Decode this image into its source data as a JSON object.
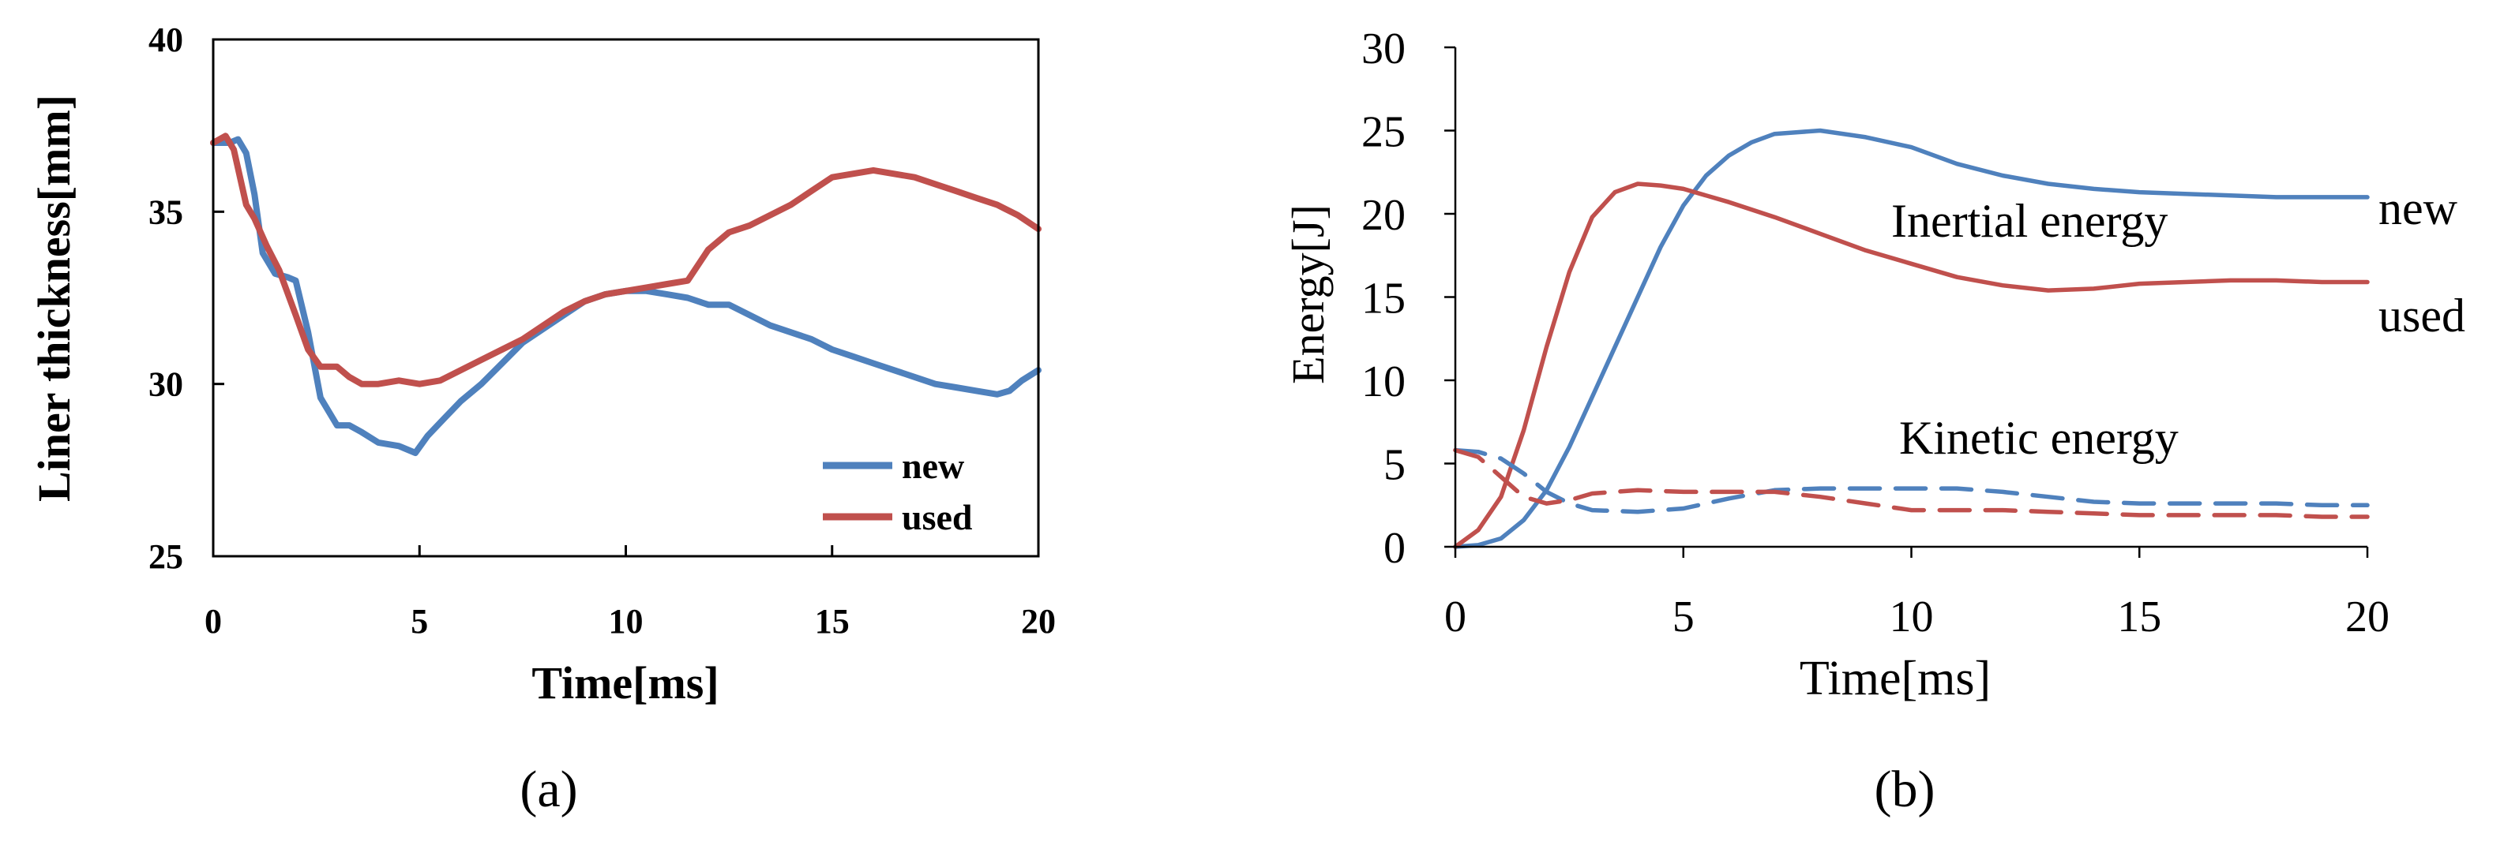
{
  "colors": {
    "new": "#4f81bd",
    "used": "#c0504d",
    "axis": "#000000"
  },
  "chart_data": [
    {
      "panel": "a",
      "type": "line",
      "panel_label": "(a)",
      "title": "",
      "xlabel": "Time[ms]",
      "ylabel": "Liner thickness[mm]",
      "xlim": [
        0,
        20
      ],
      "ylim": [
        25,
        40
      ],
      "xticks": [
        "0",
        "5",
        "10",
        "15",
        "20"
      ],
      "yticks": [
        "25",
        "30",
        "35",
        "40"
      ],
      "grid": false,
      "legend": {
        "placement": "bottom-right",
        "entries": [
          "new",
          "used"
        ]
      },
      "series": [
        {
          "name": "new",
          "x": [
            0,
            0.4,
            0.6,
            0.8,
            1.0,
            1.2,
            1.5,
            1.8,
            2.0,
            2.3,
            2.6,
            3.0,
            3.3,
            3.6,
            4.0,
            4.5,
            4.9,
            5.2,
            5.6,
            6.0,
            6.5,
            7.0,
            7.5,
            8.0,
            8.5,
            9.0,
            9.5,
            10.0,
            10.5,
            11.0,
            11.5,
            12.0,
            12.5,
            13.0,
            13.5,
            14.0,
            14.5,
            15.0,
            15.5,
            16.0,
            16.5,
            17.0,
            17.5,
            18.0,
            18.5,
            19.0,
            19.3,
            19.6,
            20.0
          ],
          "y": [
            37.0,
            37.0,
            37.1,
            36.7,
            35.5,
            33.8,
            33.2,
            33.1,
            33.0,
            31.5,
            29.6,
            28.8,
            28.8,
            28.6,
            28.3,
            28.2,
            28.0,
            28.5,
            29.0,
            29.5,
            30.0,
            30.6,
            31.2,
            31.6,
            32.0,
            32.4,
            32.6,
            32.7,
            32.7,
            32.6,
            32.5,
            32.3,
            32.3,
            32.0,
            31.7,
            31.5,
            31.3,
            31.0,
            30.8,
            30.6,
            30.4,
            30.2,
            30.0,
            29.9,
            29.8,
            29.7,
            29.8,
            30.1,
            30.4
          ]
        },
        {
          "name": "used",
          "x": [
            0,
            0.3,
            0.5,
            0.8,
            1.0,
            1.3,
            1.6,
            2.0,
            2.3,
            2.6,
            3.0,
            3.3,
            3.6,
            4.0,
            4.5,
            5.0,
            5.5,
            6.0,
            6.5,
            7.0,
            7.5,
            8.0,
            8.5,
            9.0,
            9.5,
            10.0,
            10.5,
            11.0,
            11.5,
            12.0,
            12.5,
            13.0,
            13.5,
            14.0,
            14.5,
            15.0,
            15.5,
            16.0,
            16.5,
            17.0,
            17.5,
            18.0,
            18.5,
            19.0,
            19.5,
            20.0
          ],
          "y": [
            37.0,
            37.2,
            36.8,
            35.2,
            34.8,
            34.0,
            33.3,
            32.0,
            31.0,
            30.5,
            30.5,
            30.2,
            30.0,
            30.0,
            30.1,
            30.0,
            30.1,
            30.4,
            30.7,
            31.0,
            31.3,
            31.7,
            32.1,
            32.4,
            32.6,
            32.7,
            32.8,
            32.9,
            33.0,
            33.9,
            34.4,
            34.6,
            34.9,
            35.2,
            35.6,
            36.0,
            36.1,
            36.2,
            36.1,
            36.0,
            35.8,
            35.6,
            35.4,
            35.2,
            34.9,
            34.5
          ]
        }
      ]
    },
    {
      "panel": "b",
      "type": "line",
      "panel_label": "(b)",
      "title": "",
      "xlabel": "Time[ms]",
      "ylabel": "Energy[J]",
      "xlim": [
        0,
        20
      ],
      "ylim": [
        0,
        30
      ],
      "xticks": [
        "0",
        "5",
        "10",
        "15",
        "20"
      ],
      "yticks": [
        "0",
        "5",
        "10",
        "15",
        "20",
        "25",
        "30"
      ],
      "grid": false,
      "annotations": [
        "Inertial energy",
        "Kinetic energy"
      ],
      "line_labels": [
        "new",
        "used"
      ],
      "series": [
        {
          "name": "new",
          "label": "Inertial energy",
          "style": "solid",
          "x": [
            0,
            0.5,
            1.0,
            1.5,
            2.0,
            2.5,
            3.0,
            3.5,
            4.0,
            4.5,
            5.0,
            5.5,
            6.0,
            6.5,
            7.0,
            7.5,
            8.0,
            9.0,
            10.0,
            11.0,
            12.0,
            13.0,
            14.0,
            15.0,
            16.0,
            17.0,
            18.0,
            19.0,
            20.0
          ],
          "y": [
            0,
            0.1,
            0.5,
            1.6,
            3.4,
            6.0,
            9.0,
            12.0,
            15.0,
            18.0,
            20.5,
            22.3,
            23.5,
            24.3,
            24.8,
            24.9,
            25.0,
            24.6,
            24.0,
            23.0,
            22.3,
            21.8,
            21.5,
            21.3,
            21.2,
            21.1,
            21.0,
            21.0,
            21.0
          ]
        },
        {
          "name": "used",
          "label": "Inertial energy",
          "style": "solid",
          "x": [
            0,
            0.5,
            1.0,
            1.5,
            2.0,
            2.5,
            3.0,
            3.5,
            4.0,
            4.5,
            5.0,
            6.0,
            7.0,
            8.0,
            9.0,
            10.0,
            11.0,
            12.0,
            13.0,
            14.0,
            15.0,
            16.0,
            17.0,
            18.0,
            19.0,
            20.0
          ],
          "y": [
            0,
            1.0,
            3.0,
            7.0,
            12.0,
            16.5,
            19.8,
            21.3,
            21.8,
            21.7,
            21.5,
            20.7,
            19.8,
            18.8,
            17.8,
            17.0,
            16.2,
            15.7,
            15.4,
            15.5,
            15.8,
            15.9,
            16.0,
            16.0,
            15.9,
            15.9
          ]
        },
        {
          "name": "new",
          "label": "Kinetic energy",
          "style": "dashed",
          "x": [
            0,
            0.5,
            1.0,
            1.5,
            2.0,
            2.5,
            3.0,
            4.0,
            5.0,
            6.0,
            7.0,
            8.0,
            9.0,
            10.0,
            11.0,
            12.0,
            13.0,
            14.0,
            15.0,
            16.0,
            17.0,
            18.0,
            19.0,
            20.0
          ],
          "y": [
            5.8,
            5.7,
            5.3,
            4.4,
            3.3,
            2.6,
            2.2,
            2.1,
            2.3,
            2.9,
            3.4,
            3.5,
            3.5,
            3.5,
            3.5,
            3.3,
            3.0,
            2.7,
            2.6,
            2.6,
            2.6,
            2.6,
            2.5,
            2.5
          ]
        },
        {
          "name": "used",
          "label": "Kinetic energy",
          "style": "dashed",
          "x": [
            0,
            0.5,
            1.0,
            1.5,
            2.0,
            2.5,
            3.0,
            4.0,
            5.0,
            6.0,
            7.0,
            8.0,
            9.0,
            10.0,
            11.0,
            12.0,
            13.0,
            14.0,
            15.0,
            16.0,
            17.0,
            18.0,
            19.0,
            20.0
          ],
          "y": [
            5.8,
            5.4,
            4.2,
            3.0,
            2.6,
            2.8,
            3.2,
            3.4,
            3.3,
            3.3,
            3.3,
            3.0,
            2.6,
            2.2,
            2.2,
            2.2,
            2.1,
            2.0,
            1.9,
            1.9,
            1.9,
            1.9,
            1.8,
            1.8
          ]
        }
      ]
    }
  ]
}
